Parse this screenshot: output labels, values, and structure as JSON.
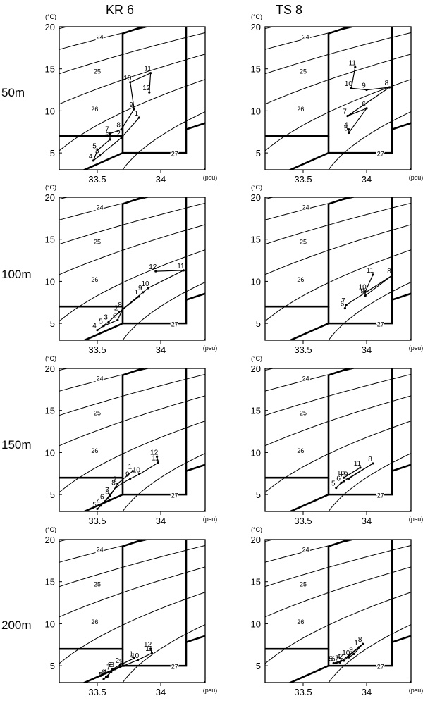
{
  "columns": [
    "KR 6",
    "TS 8"
  ],
  "depths": [
    "50m",
    "100m",
    "150m",
    "200m"
  ],
  "axes": {
    "y_unit": "(°C)",
    "x_unit": "(psu)",
    "x_ticks": [
      "33.5",
      "34"
    ],
    "y_ticks": [
      "5",
      "10",
      "15",
      "20"
    ],
    "xlim": [
      33.2,
      34.35
    ],
    "ylim": [
      3,
      20
    ]
  },
  "density_contour_labels": [
    "24",
    "25",
    "26",
    "27"
  ],
  "chart_data": [
    {
      "type": "scatter",
      "station": "KR 6",
      "depth": "50m",
      "xlim": [
        33.2,
        34.35
      ],
      "ylim": [
        3,
        20
      ],
      "points": [
        {
          "label": "1",
          "s": 33.83,
          "t": 9.2
        },
        {
          "label": "2",
          "s": 33.69,
          "t": 6.8
        },
        {
          "label": "3",
          "s": 33.52,
          "t": 4.7
        },
        {
          "label": "4",
          "s": 33.47,
          "t": 4.1
        },
        {
          "label": "5",
          "s": 33.5,
          "t": 5.3
        },
        {
          "label": "6",
          "s": 33.6,
          "t": 6.6
        },
        {
          "label": "7",
          "s": 33.6,
          "t": 7.3
        },
        {
          "label": "8",
          "s": 33.69,
          "t": 7.8
        },
        {
          "label": "9",
          "s": 33.79,
          "t": 10.2
        },
        {
          "label": "10",
          "s": 33.76,
          "t": 13.4
        },
        {
          "label": "11",
          "s": 33.92,
          "t": 14.5
        },
        {
          "label": "12",
          "s": 33.91,
          "t": 12.2
        }
      ]
    },
    {
      "type": "scatter",
      "station": "TS 8",
      "depth": "50m",
      "xlim": [
        33.2,
        34.35
      ],
      "ylim": [
        3,
        20
      ],
      "points": [
        {
          "label": "4",
          "s": 33.86,
          "t": 7.8
        },
        {
          "label": "5",
          "s": 33.86,
          "t": 7.4
        },
        {
          "label": "6",
          "s": 34.0,
          "t": 10.3
        },
        {
          "label": "7",
          "s": 33.85,
          "t": 9.4
        },
        {
          "label": "8",
          "s": 34.18,
          "t": 12.8
        },
        {
          "label": "9",
          "s": 34.0,
          "t": 12.5
        },
        {
          "label": "10",
          "s": 33.88,
          "t": 12.7
        },
        {
          "label": "11",
          "s": 33.91,
          "t": 15.2
        }
      ]
    },
    {
      "type": "scatter",
      "station": "KR 6",
      "depth": "100m",
      "xlim": [
        33.2,
        34.35
      ],
      "ylim": [
        3,
        20
      ],
      "points": [
        {
          "label": "1",
          "s": 33.83,
          "t": 8.2
        },
        {
          "label": "2",
          "s": 33.67,
          "t": 6.3
        },
        {
          "label": "3",
          "s": 33.59,
          "t": 5.2
        },
        {
          "label": "4",
          "s": 33.5,
          "t": 4.2
        },
        {
          "label": "5",
          "s": 33.55,
          "t": 4.7
        },
        {
          "label": "6",
          "s": 33.66,
          "t": 5.4
        },
        {
          "label": "8",
          "s": 33.7,
          "t": 6.7
        },
        {
          "label": "9",
          "s": 33.86,
          "t": 8.7
        },
        {
          "label": "10",
          "s": 33.9,
          "t": 9.2
        },
        {
          "label": "11",
          "s": 34.18,
          "t": 11.3
        },
        {
          "label": "12",
          "s": 33.96,
          "t": 11.2
        }
      ]
    },
    {
      "type": "scatter",
      "station": "TS 8",
      "depth": "100m",
      "xlim": [
        33.2,
        34.35
      ],
      "ylim": [
        3,
        20
      ],
      "points": [
        {
          "label": "6",
          "s": 33.83,
          "t": 6.8
        },
        {
          "label": "7",
          "s": 33.84,
          "t": 7.2
        },
        {
          "label": "8",
          "s": 34.2,
          "t": 10.7
        },
        {
          "label": "9",
          "s": 33.99,
          "t": 8.3
        },
        {
          "label": "10",
          "s": 33.99,
          "t": 8.8
        },
        {
          "label": "11",
          "s": 34.05,
          "t": 10.8
        }
      ]
    },
    {
      "type": "scatter",
      "station": "KR 6",
      "depth": "150m",
      "xlim": [
        33.2,
        34.35
      ],
      "ylim": [
        3,
        20
      ],
      "points": [
        {
          "label": "1",
          "s": 33.78,
          "t": 7.8
        },
        {
          "label": "2",
          "s": 33.66,
          "t": 6.3
        },
        {
          "label": "3",
          "s": 33.6,
          "t": 4.8
        },
        {
          "label": "4",
          "s": 33.53,
          "t": 3.7
        },
        {
          "label": "5",
          "s": 33.5,
          "t": 3.3
        },
        {
          "label": "6",
          "s": 33.56,
          "t": 4.2
        },
        {
          "label": "7",
          "s": 33.6,
          "t": 5.0
        },
        {
          "label": "8",
          "s": 33.65,
          "t": 5.9
        },
        {
          "label": "9",
          "s": 33.76,
          "t": 6.9
        },
        {
          "label": "10",
          "s": 33.83,
          "t": 7.4
        },
        {
          "label": "11",
          "s": 33.98,
          "t": 8.8
        },
        {
          "label": "12",
          "s": 33.97,
          "t": 9.5
        }
      ]
    },
    {
      "type": "scatter",
      "station": "TS 8",
      "depth": "150m",
      "xlim": [
        33.2,
        34.35
      ],
      "ylim": [
        3,
        20
      ],
      "points": [
        {
          "label": "5",
          "s": 33.76,
          "t": 5.8
        },
        {
          "label": "6",
          "s": 33.8,
          "t": 6.4
        },
        {
          "label": "7",
          "s": 33.82,
          "t": 6.6
        },
        {
          "label": "8",
          "s": 34.05,
          "t": 8.7
        },
        {
          "label": "9",
          "s": 33.86,
          "t": 6.9
        },
        {
          "label": "10",
          "s": 33.82,
          "t": 7.0
        },
        {
          "label": "11",
          "s": 33.95,
          "t": 8.2
        }
      ]
    },
    {
      "type": "scatter",
      "station": "KR 6",
      "depth": "200m",
      "xlim": [
        33.2,
        34.35
      ],
      "ylim": [
        3,
        20
      ],
      "points": [
        {
          "label": "1",
          "s": 33.79,
          "t": 5.9
        },
        {
          "label": "2",
          "s": 33.68,
          "t": 5.1
        },
        {
          "label": "3",
          "s": 33.62,
          "t": 4.6
        },
        {
          "label": "4",
          "s": 33.58,
          "t": 3.7
        },
        {
          "label": "5",
          "s": 33.55,
          "t": 3.4
        },
        {
          "label": "6",
          "s": 33.57,
          "t": 3.7
        },
        {
          "label": "7",
          "s": 33.61,
          "t": 4.3
        },
        {
          "label": "8",
          "s": 33.64,
          "t": 4.6
        },
        {
          "label": "9",
          "s": 33.71,
          "t": 5.0
        },
        {
          "label": "10",
          "s": 33.82,
          "t": 5.7
        },
        {
          "label": "11",
          "s": 33.93,
          "t": 6.5
        },
        {
          "label": "12",
          "s": 33.92,
          "t": 7.0
        }
      ]
    },
    {
      "type": "scatter",
      "station": "TS 8",
      "depth": "200m",
      "xlim": [
        33.2,
        34.35
      ],
      "ylim": [
        3,
        20
      ],
      "points": [
        {
          "label": "1",
          "s": 33.94,
          "t": 7.2
        },
        {
          "label": "2",
          "s": 33.82,
          "t": 5.6
        },
        {
          "label": "4",
          "s": 33.8,
          "t": 5.6
        },
        {
          "label": "5",
          "s": 33.74,
          "t": 5.3
        },
        {
          "label": "6",
          "s": 33.76,
          "t": 5.3
        },
        {
          "label": "7",
          "s": 33.79,
          "t": 5.4
        },
        {
          "label": "8",
          "s": 33.97,
          "t": 7.6
        },
        {
          "label": "9",
          "s": 33.9,
          "t": 6.4
        },
        {
          "label": "10",
          "s": 33.86,
          "t": 6.0
        }
      ]
    }
  ]
}
